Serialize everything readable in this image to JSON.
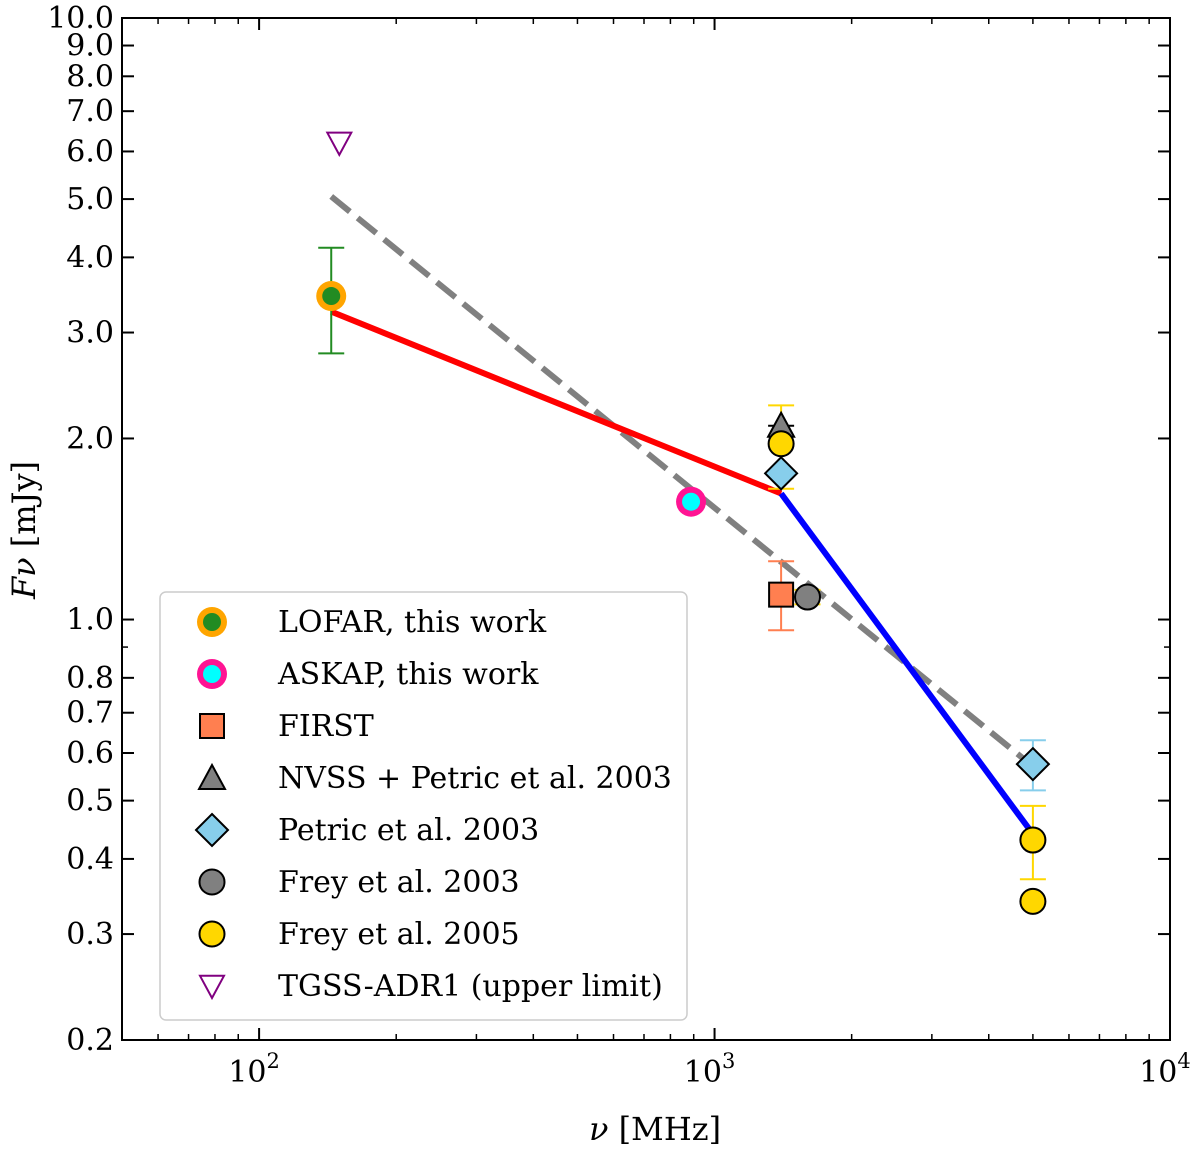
{
  "chart_data": {
    "type": "scatter",
    "x_scale": "log",
    "y_scale": "log",
    "xlabel_symbol": "ν",
    "xlabel_unit": "[MHz]",
    "ylabel_symbol": "Fν",
    "ylabel_unit": "[mJy]",
    "xlim": [
      50,
      10000
    ],
    "ylim": [
      0.2,
      10.0
    ],
    "x_ticks": [
      {
        "value": 100,
        "base": "10",
        "exp": "2"
      },
      {
        "value": 1000,
        "base": "10",
        "exp": "3"
      },
      {
        "value": 10000,
        "base": "10",
        "exp": "4"
      }
    ],
    "y_ticks": [
      {
        "value": 0.2,
        "label": "0.2"
      },
      {
        "value": 0.3,
        "label": "0.3"
      },
      {
        "value": 0.4,
        "label": "0.4"
      },
      {
        "value": 0.5,
        "label": "0.5"
      },
      {
        "value": 0.6,
        "label": "0.6"
      },
      {
        "value": 0.7,
        "label": "0.7"
      },
      {
        "value": 0.8,
        "label": "0.8"
      },
      {
        "value": 1.0,
        "label": "1.0"
      },
      {
        "value": 2.0,
        "label": "2.0"
      },
      {
        "value": 3.0,
        "label": "3.0"
      },
      {
        "value": 4.0,
        "label": "4.0"
      },
      {
        "value": 5.0,
        "label": "5.0"
      },
      {
        "value": 6.0,
        "label": "6.0"
      },
      {
        "value": 7.0,
        "label": "7.0"
      },
      {
        "value": 8.0,
        "label": "8.0"
      },
      {
        "value": 9.0,
        "label": "9.0"
      },
      {
        "value": 10.0,
        "label": "10.0"
      }
    ],
    "legend_position": "lower-left",
    "fits": [
      {
        "name": "single power law",
        "color": "#808080",
        "style": "dashed",
        "x": [
          144,
          5000
        ],
        "y": [
          5.05,
          0.57
        ]
      },
      {
        "name": "low-frequency power law",
        "color": "#ff0000",
        "style": "solid",
        "x": [
          144,
          1400
        ],
        "y": [
          3.25,
          1.62
        ]
      },
      {
        "name": "high-frequency power law",
        "color": "#0000ff",
        "style": "solid",
        "x": [
          1400,
          5000
        ],
        "y": [
          1.62,
          0.44
        ]
      }
    ],
    "series": [
      {
        "name": "LOFAR, this work",
        "marker": "circle-ring",
        "face": "#228b22",
        "edge": "#ffa500",
        "errcolor": "#228b22",
        "points": [
          {
            "x": 144,
            "y": 3.45,
            "yerr_low": 2.77,
            "yerr_high": 4.15
          }
        ]
      },
      {
        "name": "ASKAP, this work",
        "marker": "circle-ring",
        "face": "#00ffff",
        "edge": "#ff1493",
        "errcolor": "#ff1493",
        "points": [
          {
            "x": 888,
            "y": 1.57
          }
        ]
      },
      {
        "name": "FIRST",
        "marker": "square",
        "face": "#ff7f50",
        "edge": "#000000",
        "errcolor": "#ff7f50",
        "points": [
          {
            "x": 1400,
            "y": 1.1,
            "yerr_low": 0.96,
            "yerr_high": 1.25
          }
        ]
      },
      {
        "name": "NVSS + Petric et al. 2003",
        "marker": "triangle-up",
        "face": "#808080",
        "edge": "#000000",
        "errcolor": "#000000",
        "points": [
          {
            "x": 1400,
            "y": 2.1,
            "yerr_low": 1.96,
            "yerr_high": 2.1
          }
        ]
      },
      {
        "name": "Petric et al. 2003",
        "marker": "diamond",
        "face": "#87ceeb",
        "edge": "#000000",
        "errcolor": "#87ceeb",
        "points": [
          {
            "x": 1400,
            "y": 1.75
          },
          {
            "x": 5000,
            "y": 0.575,
            "yerr_low": 0.52,
            "yerr_high": 0.63
          }
        ]
      },
      {
        "name": "Frey et al. 2003",
        "marker": "circle",
        "face": "#808080",
        "edge": "#000000",
        "errcolor": "#ffd700",
        "points": [
          {
            "x": 1600,
            "y": 1.09,
            "yerr_low": 1.06,
            "yerr_high": 1.12
          }
        ]
      },
      {
        "name": "Frey et al. 2005",
        "marker": "circle",
        "face": "#ffd700",
        "edge": "#000000",
        "errcolor": "#ffd700",
        "points": [
          {
            "x": 1400,
            "y": 1.96,
            "yerr_low": 1.65,
            "yerr_high": 2.27
          },
          {
            "x": 5000,
            "y": 0.43,
            "yerr_low": 0.37,
            "yerr_high": 0.49
          },
          {
            "x": 5000,
            "y": 0.34
          }
        ]
      },
      {
        "name": "TGSS-ADR1 (upper limit)",
        "marker": "triangle-down",
        "face": "none",
        "edge": "#800080",
        "errcolor": "#800080",
        "points": [
          {
            "x": 150,
            "y": 6.2
          }
        ]
      }
    ]
  }
}
